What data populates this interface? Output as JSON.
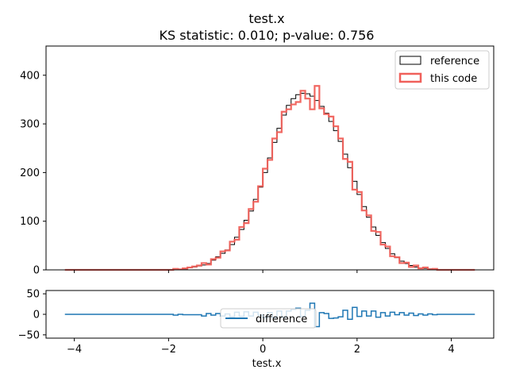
{
  "chart_data": {
    "type": "histogram",
    "title": "test.x",
    "subtitle": "KS statistic: 0.010; p-value: 0.756",
    "xlabel": "test.x",
    "xlim": [
      -4.6,
      4.9
    ],
    "x_ticks": [
      -4,
      -2,
      0,
      2,
      4
    ],
    "main_ylim": [
      0,
      460
    ],
    "main_y_ticks": [
      0,
      100,
      200,
      300,
      400
    ],
    "diff_ylim": [
      -58,
      58
    ],
    "diff_y_ticks": [
      -50,
      0,
      50
    ],
    "bins": {
      "start": -4.2,
      "width": 0.1,
      "count": 87
    },
    "series": [
      {
        "name": "reference",
        "color": "#000000",
        "counts": [
          0,
          0,
          0,
          0,
          0,
          0,
          0,
          0,
          0,
          0,
          0,
          0,
          0,
          0,
          0,
          0,
          0,
          0,
          0,
          0,
          0,
          0,
          0,
          0,
          1,
          2,
          4,
          6,
          8,
          10,
          13,
          20,
          27,
          34,
          41,
          52,
          67,
          83,
          102,
          121,
          145,
          170,
          200,
          230,
          262,
          291,
          318,
          338,
          352,
          360,
          363,
          362,
          357,
          348,
          336,
          322,
          305,
          286,
          264,
          238,
          210,
          182,
          155,
          130,
          108,
          88,
          71,
          56,
          44,
          33,
          25,
          18,
          13,
          9,
          6,
          4,
          3,
          2,
          1,
          0,
          0,
          0,
          0,
          0,
          0,
          0,
          0
        ]
      },
      {
        "name": "this code",
        "color": "#f0605a",
        "counts": [
          0,
          0,
          0,
          0,
          0,
          0,
          0,
          0,
          0,
          0,
          0,
          0,
          0,
          0,
          0,
          0,
          0,
          0,
          0,
          0,
          0,
          0,
          0,
          2,
          1,
          3,
          5,
          7,
          9,
          14,
          11,
          22,
          25,
          38,
          40,
          58,
          62,
          88,
          96,
          125,
          140,
          172,
          208,
          226,
          270,
          283,
          325,
          330,
          340,
          345,
          368,
          352,
          330,
          378,
          332,
          320,
          315,
          295,
          270,
          228,
          222,
          165,
          160,
          122,
          112,
          80,
          78,
          52,
          48,
          28,
          26,
          14,
          15,
          6,
          9,
          3,
          5,
          1,
          2,
          0,
          0,
          0,
          0,
          0,
          0,
          0,
          0
        ]
      }
    ],
    "difference": {
      "name": "difference",
      "color": "#1f77b4"
    }
  }
}
